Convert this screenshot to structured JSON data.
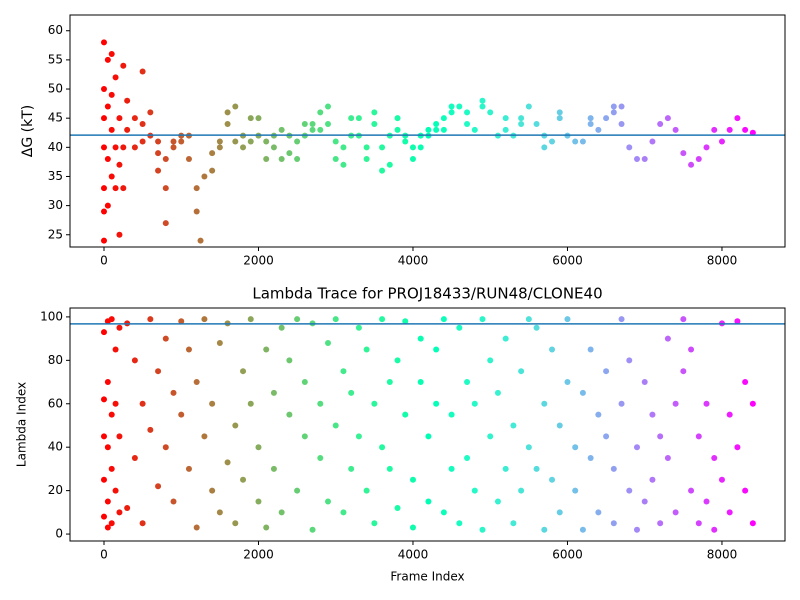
{
  "chart_data": [
    {
      "type": "scatter",
      "ylabel": "ΔG (kT)",
      "x": [
        0,
        0,
        0,
        0,
        0,
        0,
        0,
        50,
        50,
        50,
        50,
        100,
        100,
        100,
        100,
        150,
        150,
        150,
        200,
        200,
        200,
        250,
        250,
        250,
        300,
        300,
        400,
        400,
        500,
        500,
        500,
        600,
        600,
        700,
        700,
        700,
        800,
        800,
        800,
        900,
        900,
        1000,
        1000,
        1100,
        1100,
        1200,
        1200,
        1250,
        1300,
        1400,
        1400,
        1500,
        1500,
        1600,
        1600,
        1700,
        1700,
        1800,
        1800,
        1900,
        1900,
        2000,
        2000,
        2100,
        2100,
        2200,
        2200,
        2300,
        2300,
        2400,
        2400,
        2500,
        2500,
        2600,
        2600,
        2700,
        2700,
        2800,
        2800,
        2900,
        2900,
        3000,
        3000,
        3100,
        3100,
        3200,
        3200,
        3300,
        3300,
        3400,
        3400,
        3500,
        3500,
        3600,
        3600,
        3700,
        3700,
        3800,
        3800,
        3900,
        3900,
        4000,
        4000,
        4100,
        4100,
        4200,
        4200,
        4300,
        4300,
        4400,
        4400,
        4500,
        4500,
        4600,
        4700,
        4700,
        4800,
        4900,
        4900,
        5000,
        5100,
        5200,
        5200,
        5300,
        5400,
        5400,
        5500,
        5600,
        5700,
        5700,
        5800,
        5900,
        5900,
        6000,
        6100,
        6200,
        6300,
        6300,
        6400,
        6500,
        6600,
        6600,
        6700,
        6700,
        6800,
        6900,
        7000,
        7100,
        7200,
        7300,
        7400,
        7500,
        7600,
        7700,
        7800,
        7900,
        8000,
        8100,
        8200,
        8300,
        8400
      ],
      "values": [
        58,
        24,
        50,
        40,
        29,
        45,
        33,
        55,
        38,
        47,
        30,
        56,
        43,
        35,
        49,
        52,
        33,
        40,
        45,
        25,
        37,
        54,
        40,
        33,
        43,
        48,
        45,
        40,
        53,
        44,
        41,
        46,
        42,
        36,
        41,
        39,
        27,
        33,
        38,
        40,
        41,
        42,
        41,
        42,
        38,
        33,
        29,
        24,
        35,
        39,
        36,
        41,
        40,
        44,
        46,
        47,
        41,
        42,
        40,
        45,
        41,
        42,
        45,
        38,
        41,
        40,
        42,
        43,
        38,
        42,
        39,
        38,
        41,
        44,
        42,
        44,
        43,
        46,
        43,
        47,
        44,
        41,
        38,
        37,
        40,
        45,
        42,
        42,
        45,
        38,
        40,
        46,
        44,
        40,
        36,
        37,
        42,
        43,
        45,
        42,
        41,
        38,
        40,
        42,
        40,
        43,
        42,
        43,
        44,
        45,
        43,
        47,
        46,
        47,
        44,
        46,
        43,
        48,
        47,
        46,
        42,
        43,
        45,
        42,
        45,
        44,
        47,
        44,
        40,
        42,
        41,
        45,
        46,
        42,
        41,
        41,
        44,
        45,
        43,
        45,
        46,
        47,
        47,
        44,
        40,
        38,
        38,
        41,
        44,
        45,
        43,
        39,
        37,
        38,
        40,
        43,
        41,
        43,
        45,
        43,
        42.5
      ],
      "colormap": "rainbow",
      "colormap_reversed": true,
      "xlim": [
        -440,
        8816
      ],
      "xticks": [
        0,
        2000,
        4000,
        6000,
        8000
      ],
      "ylim": [
        22.9,
        62.7
      ],
      "yticks": [
        25,
        30,
        35,
        40,
        45,
        50,
        55,
        60
      ],
      "hline": 42.1,
      "hline_color": "#1f77b4"
    },
    {
      "type": "scatter",
      "title": "Lambda Trace for PROJ18433/RUN48/CLONE40",
      "xlabel": "Frame Index",
      "ylabel": "Lambda Index",
      "x": [
        0,
        0,
        0,
        0,
        0,
        50,
        50,
        50,
        50,
        50,
        100,
        100,
        100,
        100,
        150,
        150,
        150,
        200,
        200,
        200,
        300,
        300,
        400,
        400,
        500,
        500,
        600,
        600,
        700,
        700,
        800,
        800,
        900,
        900,
        1000,
        1000,
        1100,
        1100,
        1200,
        1200,
        1300,
        1300,
        1400,
        1400,
        1500,
        1500,
        1600,
        1600,
        1700,
        1700,
        1800,
        1800,
        1900,
        1900,
        2000,
        2000,
        2100,
        2100,
        2200,
        2200,
        2300,
        2300,
        2400,
        2400,
        2500,
        2500,
        2600,
        2600,
        2700,
        2700,
        2800,
        2800,
        2900,
        2900,
        3000,
        3000,
        3100,
        3100,
        3200,
        3200,
        3300,
        3300,
        3400,
        3400,
        3500,
        3500,
        3600,
        3600,
        3700,
        3700,
        3800,
        3800,
        3900,
        3900,
        4000,
        4000,
        4100,
        4100,
        4200,
        4200,
        4300,
        4300,
        4400,
        4400,
        4500,
        4500,
        4600,
        4600,
        4700,
        4700,
        4800,
        4800,
        4900,
        4900,
        5000,
        5000,
        5100,
        5100,
        5200,
        5200,
        5300,
        5300,
        5400,
        5400,
        5500,
        5500,
        5600,
        5600,
        5700,
        5700,
        5800,
        5800,
        5900,
        5900,
        6000,
        6000,
        6100,
        6100,
        6200,
        6200,
        6300,
        6300,
        6400,
        6400,
        6500,
        6500,
        6600,
        6600,
        6700,
        6700,
        6800,
        6800,
        6900,
        6900,
        7000,
        7000,
        7100,
        7100,
        7200,
        7200,
        7300,
        7300,
        7400,
        7400,
        7500,
        7500,
        7600,
        7600,
        7700,
        7700,
        7800,
        7800,
        7900,
        7900,
        8000,
        8000,
        8100,
        8100,
        8200,
        8200,
        8300,
        8300,
        8400,
        8400
      ],
      "values": [
        93,
        62,
        25,
        8,
        45,
        98,
        70,
        15,
        3,
        40,
        99,
        55,
        30,
        5,
        85,
        20,
        60,
        95,
        10,
        45,
        97,
        12,
        80,
        35,
        60,
        5,
        99,
        48,
        22,
        75,
        90,
        40,
        15,
        65,
        55,
        98,
        30,
        85,
        3,
        70,
        99,
        45,
        20,
        60,
        88,
        10,
        97,
        33,
        50,
        5,
        75,
        25,
        99,
        60,
        40,
        15,
        85,
        3,
        65,
        30,
        95,
        10,
        55,
        80,
        20,
        99,
        70,
        45,
        97,
        2,
        35,
        60,
        88,
        15,
        50,
        99,
        10,
        75,
        65,
        30,
        95,
        45,
        20,
        85,
        60,
        5,
        99,
        40,
        30,
        70,
        80,
        12,
        98,
        55,
        25,
        3,
        70,
        90,
        45,
        15,
        85,
        60,
        10,
        99,
        55,
        30,
        95,
        5,
        35,
        70,
        60,
        20,
        99,
        2,
        45,
        80,
        15,
        65,
        90,
        30,
        5,
        50,
        75,
        20,
        99,
        40,
        30,
        95,
        2,
        60,
        85,
        25,
        50,
        10,
        99,
        70,
        20,
        40,
        65,
        2,
        35,
        85,
        10,
        55,
        45,
        75,
        5,
        30,
        99,
        60,
        80,
        20,
        40,
        2,
        70,
        15,
        25,
        55,
        5,
        45,
        90,
        35,
        60,
        10,
        99,
        75,
        20,
        85,
        45,
        5,
        15,
        60,
        35,
        2,
        97,
        25,
        55,
        10,
        98,
        40,
        70,
        20,
        60,
        5
      ],
      "colormap": "rainbow",
      "colormap_reversed": true,
      "xlim": [
        -440,
        8816
      ],
      "xticks": [
        0,
        2000,
        4000,
        6000,
        8000
      ],
      "ylim": [
        -3.2,
        104.1
      ],
      "yticks": [
        0,
        20,
        40,
        60,
        80,
        100
      ],
      "hline": 96.8,
      "hline_color": "#1f77b4"
    }
  ]
}
